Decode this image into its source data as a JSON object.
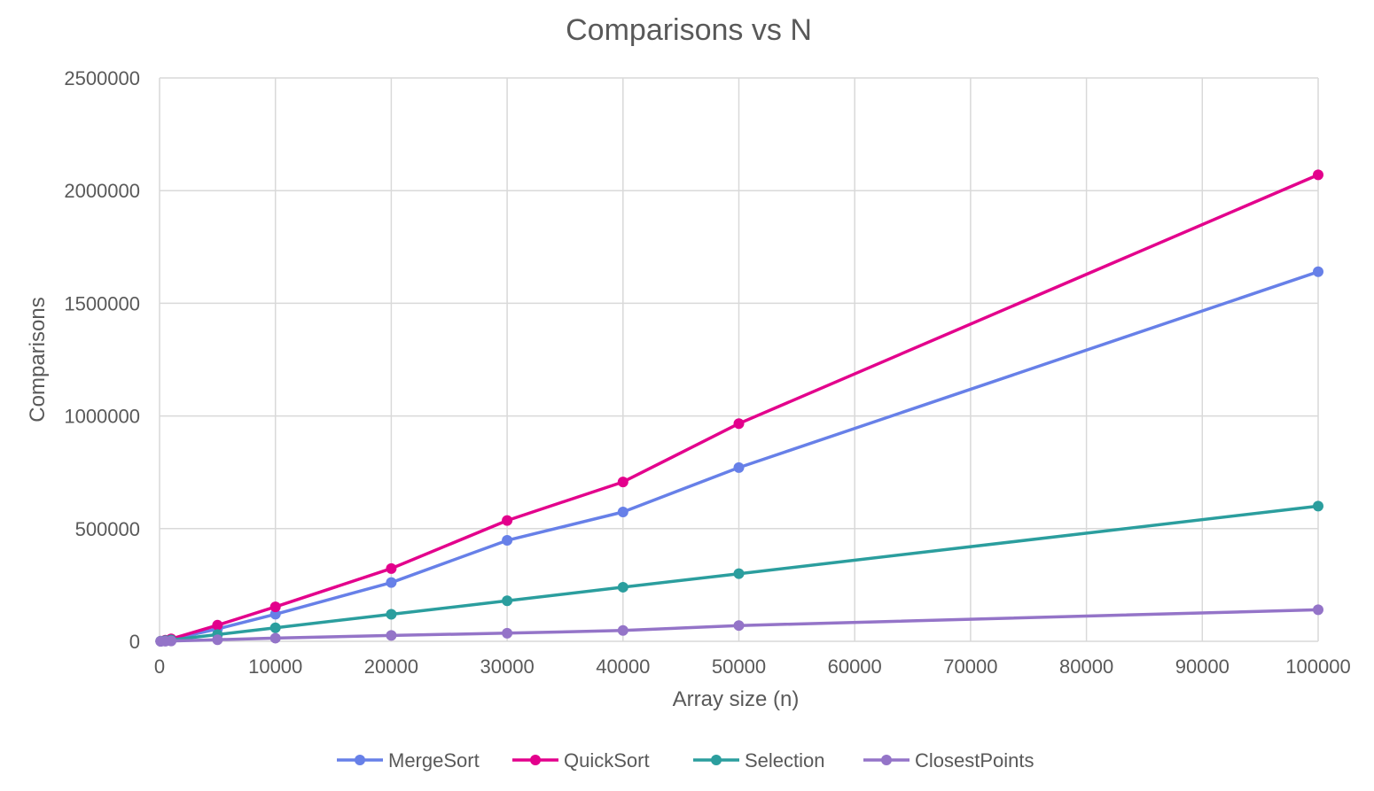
{
  "chart_data": {
    "type": "line",
    "title": "Comparisons vs N",
    "xlabel": "Array size (n)",
    "ylabel": "Comparisons",
    "xlim": [
      0,
      100000
    ],
    "ylim": [
      0,
      2500000
    ],
    "x_ticks": [
      "0",
      "10000",
      "20000",
      "30000",
      "40000",
      "50000",
      "60000",
      "70000",
      "80000",
      "90000",
      "100000"
    ],
    "y_ticks": [
      "0",
      "500000",
      "1000000",
      "1500000",
      "2000000",
      "2500000"
    ],
    "grid": true,
    "legend_position": "bottom",
    "series": [
      {
        "name": "MergeSort",
        "color": "#6780e8",
        "points": [
          [
            100,
            540
          ],
          [
            500,
            3850
          ],
          [
            1000,
            8700
          ],
          [
            5000,
            55200
          ],
          [
            10000,
            120400
          ],
          [
            20000,
            260800
          ],
          [
            30000,
            447900
          ],
          [
            40000,
            574000
          ],
          [
            50000,
            771000
          ],
          [
            100000,
            1640000
          ]
        ]
      },
      {
        "name": "QuickSort",
        "color": "#e3008c",
        "points": [
          [
            100,
            650
          ],
          [
            500,
            4700
          ],
          [
            1000,
            10800
          ],
          [
            5000,
            71500
          ],
          [
            10000,
            153000
          ],
          [
            20000,
            323000
          ],
          [
            30000,
            536000
          ],
          [
            40000,
            707000
          ],
          [
            50000,
            966000
          ],
          [
            100000,
            2070000
          ]
        ]
      },
      {
        "name": "Selection",
        "color": "#2b9e9e",
        "points": [
          [
            100,
            600
          ],
          [
            500,
            3000
          ],
          [
            1000,
            6000
          ],
          [
            5000,
            30000
          ],
          [
            10000,
            60000
          ],
          [
            20000,
            120000
          ],
          [
            30000,
            180000
          ],
          [
            40000,
            240000
          ],
          [
            50000,
            300000
          ],
          [
            100000,
            600000
          ]
        ]
      },
      {
        "name": "ClosestPoints",
        "color": "#9474c8",
        "points": [
          [
            100,
            100
          ],
          [
            500,
            600
          ],
          [
            1000,
            1400
          ],
          [
            5000,
            7000
          ],
          [
            10000,
            14000
          ],
          [
            20000,
            26000
          ],
          [
            30000,
            36000
          ],
          [
            40000,
            48000
          ],
          [
            50000,
            70000
          ],
          [
            100000,
            140000
          ]
        ]
      }
    ]
  }
}
